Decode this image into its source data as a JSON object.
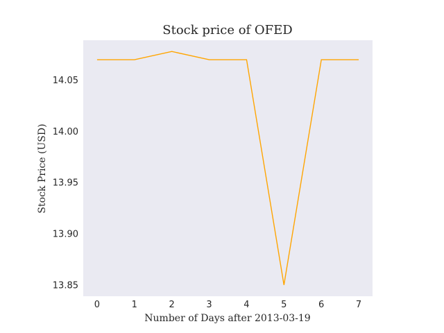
{
  "chart_data": {
    "type": "line",
    "title": "Stock price of OFED",
    "xlabel": "Number of Days after 2013-03-19",
    "ylabel": "Stock Price (USD)",
    "x": [
      0,
      1,
      2,
      3,
      4,
      5,
      6,
      7
    ],
    "series": [
      {
        "values": [
          14.07,
          14.07,
          14.078,
          14.07,
          14.07,
          13.85,
          14.07,
          14.07
        ],
        "color": "#FFA500"
      }
    ],
    "xticks": [
      "0",
      "1",
      "2",
      "3",
      "4",
      "5",
      "6",
      "7"
    ],
    "yticks": [
      "13.85",
      "13.90",
      "13.95",
      "14.00",
      "14.05"
    ],
    "xlim": [
      -0.37,
      7.37
    ],
    "ylim": [
      13.839,
      14.089
    ],
    "grid": false,
    "background": "#EAEAF2"
  }
}
